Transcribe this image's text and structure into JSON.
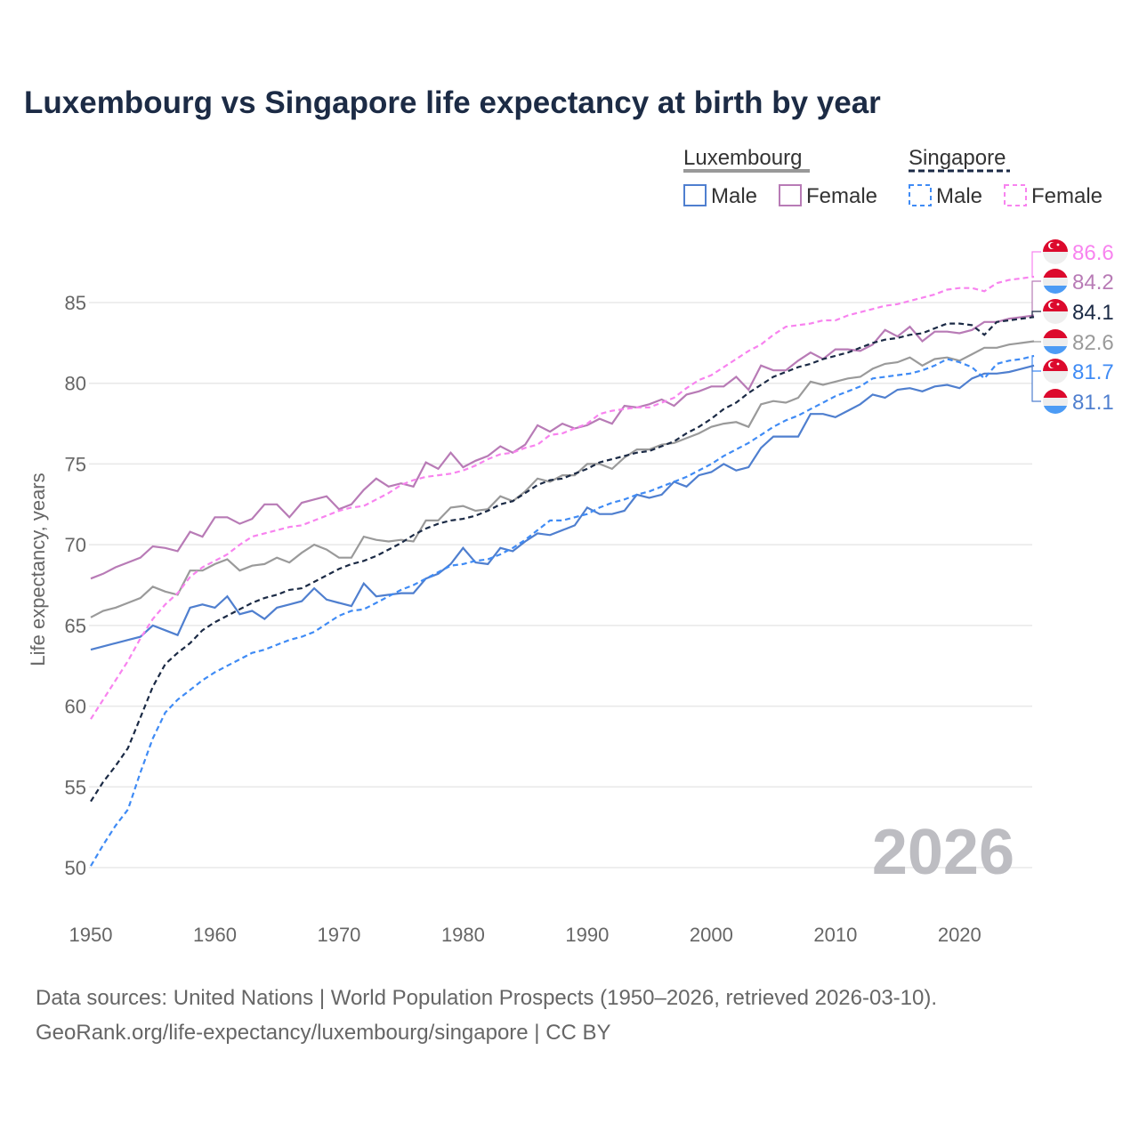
{
  "title": "Luxembourg vs Singapore life expectancy at birth by year",
  "legend": {
    "groups": [
      {
        "name": "Luxembourg",
        "male": "Male",
        "female": "Female"
      },
      {
        "name": "Singapore",
        "male": "Male",
        "female": "Female"
      }
    ]
  },
  "watermark_year": "2026",
  "footer": {
    "line1": "Data sources: United Nations | World Population Prospects (1950–2026, retrieved 2026-03-10).",
    "line2": "GeoRank.org/life-expectancy/luxembourg/singapore | CC BY"
  },
  "chart_data": {
    "type": "line",
    "title": "Luxembourg vs Singapore life expectancy at birth by year",
    "xlabel": "",
    "ylabel": "Life expectancy, years",
    "xlim": [
      1950,
      2026
    ],
    "ylim": [
      50,
      86.6
    ],
    "xticks": [
      "1950",
      "1960",
      "1970",
      "1980",
      "1990",
      "2000",
      "2010",
      "2020"
    ],
    "yticks": [
      "50",
      "55",
      "60",
      "65",
      "70",
      "75",
      "80",
      "85"
    ],
    "grid": true,
    "legend_position": "top-right",
    "x_start": 1950,
    "series": [
      {
        "name": "Singapore Female",
        "country": "Singapore",
        "color": "#f883ef",
        "dashed": true,
        "end_label": "86.6",
        "flag": "sg",
        "values": [
          59.2,
          60.4,
          61.6,
          62.8,
          64.2,
          65.4,
          66.3,
          67.0,
          68.0,
          68.6,
          69.0,
          69.4,
          70.0,
          70.5,
          70.7,
          70.9,
          71.1,
          71.2,
          71.5,
          71.8,
          72.1,
          72.3,
          72.4,
          72.8,
          73.2,
          73.7,
          74.0,
          74.2,
          74.3,
          74.4,
          74.6,
          74.9,
          75.3,
          75.6,
          75.7,
          76.0,
          76.2,
          76.8,
          76.9,
          77.2,
          77.5,
          78.1,
          78.3,
          78.4,
          78.5,
          78.5,
          78.8,
          79.1,
          79.7,
          80.2,
          80.5,
          81.0,
          81.5,
          82.0,
          82.4,
          83.0,
          83.5,
          83.6,
          83.7,
          83.9,
          83.9,
          84.2,
          84.4,
          84.6,
          84.8,
          84.9,
          85.1,
          85.3,
          85.5,
          85.8,
          85.9,
          85.9,
          85.7,
          86.2,
          86.4,
          86.5,
          86.6
        ]
      },
      {
        "name": "Luxembourg Female",
        "country": "Luxembourg",
        "color": "#b87bb6",
        "dashed": false,
        "end_label": "84.2",
        "flag": "lu",
        "values": [
          67.9,
          68.2,
          68.6,
          68.9,
          69.2,
          69.9,
          69.8,
          69.6,
          70.8,
          70.5,
          71.7,
          71.7,
          71.3,
          71.6,
          72.5,
          72.5,
          71.7,
          72.6,
          72.8,
          73.0,
          72.2,
          72.5,
          73.4,
          74.1,
          73.6,
          73.8,
          73.6,
          75.1,
          74.7,
          75.7,
          74.8,
          75.2,
          75.5,
          76.1,
          75.7,
          76.2,
          77.4,
          77.0,
          77.5,
          77.2,
          77.4,
          77.8,
          77.5,
          78.6,
          78.5,
          78.7,
          79.0,
          78.6,
          79.3,
          79.5,
          79.8,
          79.8,
          80.4,
          79.6,
          81.1,
          80.8,
          80.8,
          81.4,
          81.9,
          81.5,
          82.1,
          82.1,
          82.0,
          82.4,
          83.3,
          82.9,
          83.5,
          82.6,
          83.2,
          83.2,
          83.1,
          83.3,
          83.8,
          83.8,
          84.0,
          84.1,
          84.2
        ]
      },
      {
        "name": "Singapore",
        "country": "Singapore",
        "color": "#1b2a45",
        "dashed": true,
        "end_label": "84.1",
        "flag": "sg",
        "values": [
          54.1,
          55.3,
          56.3,
          57.4,
          59.3,
          61.2,
          62.6,
          63.3,
          63.9,
          64.7,
          65.2,
          65.6,
          66.0,
          66.4,
          66.7,
          66.9,
          67.2,
          67.3,
          67.7,
          68.1,
          68.5,
          68.8,
          69.0,
          69.3,
          69.7,
          70.1,
          70.6,
          71.0,
          71.3,
          71.5,
          71.6,
          71.8,
          72.1,
          72.5,
          72.7,
          73.2,
          73.7,
          74.0,
          74.1,
          74.4,
          74.7,
          75.1,
          75.3,
          75.5,
          75.7,
          75.8,
          76.1,
          76.4,
          76.9,
          77.3,
          77.8,
          78.4,
          78.8,
          79.4,
          79.9,
          80.4,
          80.7,
          81.0,
          81.2,
          81.5,
          81.7,
          81.9,
          82.2,
          82.5,
          82.7,
          82.8,
          83.0,
          83.1,
          83.4,
          83.7,
          83.7,
          83.6,
          83.0,
          83.8,
          83.9,
          84.0,
          84.1
        ]
      },
      {
        "name": "Luxembourg",
        "country": "Luxembourg",
        "color": "#9a9a9a",
        "dashed": false,
        "end_label": "82.6",
        "flag": "lu",
        "values": [
          65.5,
          65.9,
          66.1,
          66.4,
          66.7,
          67.4,
          67.1,
          66.9,
          68.4,
          68.4,
          68.8,
          69.1,
          68.4,
          68.7,
          68.8,
          69.2,
          68.9,
          69.5,
          70.0,
          69.7,
          69.2,
          69.2,
          70.5,
          70.3,
          70.2,
          70.3,
          70.2,
          71.5,
          71.5,
          72.3,
          72.4,
          72.1,
          72.2,
          73.0,
          72.7,
          73.3,
          74.1,
          73.9,
          74.3,
          74.3,
          75.0,
          75.0,
          74.7,
          75.4,
          75.9,
          75.9,
          76.2,
          76.3,
          76.6,
          76.9,
          77.3,
          77.5,
          77.6,
          77.3,
          78.7,
          78.9,
          78.8,
          79.1,
          80.1,
          79.9,
          80.1,
          80.3,
          80.4,
          80.9,
          81.2,
          81.3,
          81.6,
          81.1,
          81.5,
          81.6,
          81.4,
          81.8,
          82.2,
          82.2,
          82.4,
          82.5,
          82.6
        ]
      },
      {
        "name": "Singapore Male",
        "country": "Singapore",
        "color": "#3f8bf5",
        "dashed": true,
        "end_label": "81.7",
        "flag": "sg",
        "values": [
          50.1,
          51.4,
          52.6,
          53.6,
          55.9,
          58.0,
          59.6,
          60.4,
          61.0,
          61.6,
          62.1,
          62.5,
          62.9,
          63.3,
          63.5,
          63.8,
          64.1,
          64.3,
          64.6,
          65.1,
          65.6,
          65.9,
          66.0,
          66.4,
          66.8,
          67.2,
          67.5,
          67.9,
          68.3,
          68.7,
          68.8,
          69.0,
          69.1,
          69.4,
          69.8,
          70.3,
          70.9,
          71.5,
          71.5,
          71.7,
          71.9,
          72.3,
          72.6,
          72.8,
          73.1,
          73.3,
          73.6,
          73.9,
          74.2,
          74.6,
          75.0,
          75.5,
          75.9,
          76.3,
          76.8,
          77.3,
          77.7,
          78.0,
          78.4,
          78.8,
          79.2,
          79.5,
          79.8,
          80.3,
          80.4,
          80.5,
          80.6,
          80.8,
          81.1,
          81.5,
          81.3,
          81.0,
          80.3,
          81.2,
          81.4,
          81.5,
          81.7
        ]
      },
      {
        "name": "Luxembourg Male",
        "country": "Luxembourg",
        "color": "#4f7fcf",
        "dashed": false,
        "end_label": "81.1",
        "flag": "lu",
        "values": [
          63.5,
          63.7,
          63.9,
          64.1,
          64.3,
          65.0,
          64.7,
          64.4,
          66.1,
          66.3,
          66.1,
          66.8,
          65.7,
          65.9,
          65.4,
          66.1,
          66.3,
          66.5,
          67.3,
          66.6,
          66.4,
          66.2,
          67.6,
          66.8,
          66.9,
          67.0,
          67.0,
          67.9,
          68.2,
          68.8,
          69.8,
          68.9,
          68.8,
          69.8,
          69.6,
          70.2,
          70.7,
          70.6,
          70.9,
          71.2,
          72.3,
          71.9,
          71.9,
          72.1,
          73.1,
          72.9,
          73.1,
          73.9,
          73.6,
          74.3,
          74.5,
          75.0,
          74.6,
          74.8,
          76.0,
          76.7,
          76.7,
          76.7,
          78.1,
          78.1,
          77.9,
          78.3,
          78.7,
          79.3,
          79.1,
          79.6,
          79.7,
          79.5,
          79.8,
          79.9,
          79.7,
          80.3,
          80.6,
          80.6,
          80.7,
          80.9,
          81.1
        ]
      }
    ]
  }
}
